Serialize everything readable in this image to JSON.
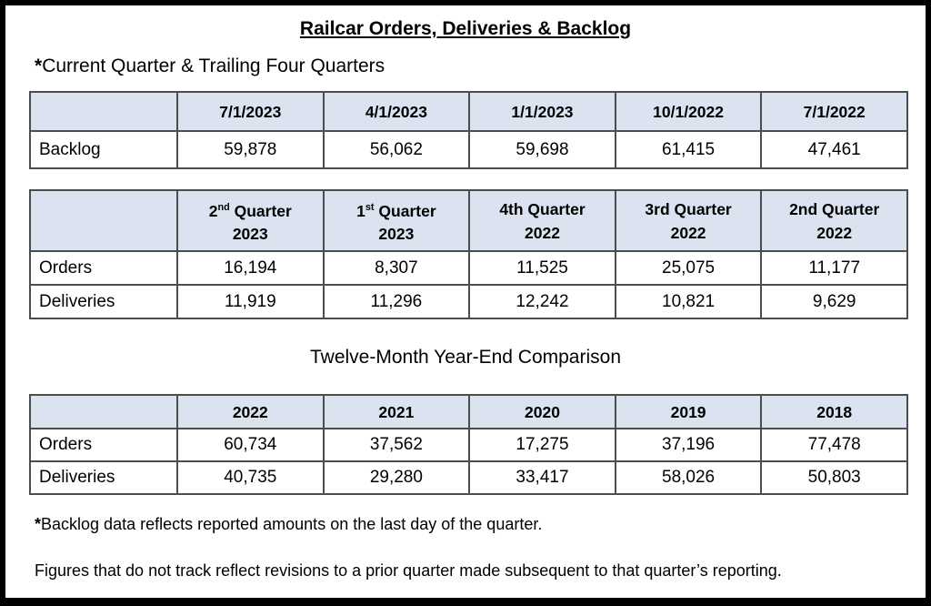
{
  "document": {
    "title": "Railcar Orders, Deliveries & Backlog",
    "subtitle": {
      "marker": "*",
      "text": "Current Quarter & Trailing Four Quarters"
    },
    "section_heading": "Twelve-Month Year-End Comparison",
    "footnotes": [
      {
        "marker": "*",
        "text": "Backlog data reflects reported amounts on the last day of the quarter."
      },
      {
        "marker": "",
        "text": "Figures that do not track reflect revisions to a prior quarter made subsequent to that quarter’s reporting."
      }
    ]
  },
  "colors": {
    "header_bg": "#dce3f0",
    "table_border": "#4d4d4d",
    "page_border": "#000000",
    "text": "#000000"
  },
  "tables": [
    {
      "id": "backlog",
      "columns": [
        {
          "segments": [
            {
              "t": "7/1/2023"
            }
          ]
        },
        {
          "segments": [
            {
              "t": "4/1/2023"
            }
          ]
        },
        {
          "segments": [
            {
              "t": "1/1/2023"
            }
          ]
        },
        {
          "segments": [
            {
              "t": "10/1/2022"
            }
          ]
        },
        {
          "segments": [
            {
              "t": "7/1/2022"
            }
          ]
        }
      ],
      "rows": [
        {
          "label": "Backlog",
          "values": [
            "59,878",
            "56,062",
            "59,698",
            "61,415",
            "47,461"
          ]
        }
      ]
    },
    {
      "id": "quarterly",
      "columns": [
        {
          "segments": [
            {
              "t": "2"
            },
            {
              "t": "nd",
              "sup": true
            },
            {
              "t": " Quarter"
            }
          ],
          "line2": "2023"
        },
        {
          "segments": [
            {
              "t": "1"
            },
            {
              "t": "st",
              "sup": true
            },
            {
              "t": " Quarter"
            }
          ],
          "line2": "2023"
        },
        {
          "segments": [
            {
              "t": "4th Quarter"
            }
          ],
          "line2": "2022"
        },
        {
          "segments": [
            {
              "t": "3rd Quarter"
            }
          ],
          "line2": "2022"
        },
        {
          "segments": [
            {
              "t": "2nd Quarter"
            }
          ],
          "line2": "2022"
        }
      ],
      "rows": [
        {
          "label": "Orders",
          "values": [
            "16,194",
            "8,307",
            "11,525",
            "25,075",
            "11,177"
          ]
        },
        {
          "label": "Deliveries",
          "values": [
            "11,919",
            "11,296",
            "12,242",
            "10,821",
            "9,629"
          ]
        }
      ]
    },
    {
      "id": "yearend",
      "columns": [
        {
          "segments": [
            {
              "t": "2022"
            }
          ]
        },
        {
          "segments": [
            {
              "t": "2021"
            }
          ]
        },
        {
          "segments": [
            {
              "t": "2020"
            }
          ]
        },
        {
          "segments": [
            {
              "t": "2019"
            }
          ]
        },
        {
          "segments": [
            {
              "t": "2018"
            }
          ]
        }
      ],
      "rows": [
        {
          "label": "Orders",
          "values": [
            "60,734",
            "37,562",
            "17,275",
            "37,196",
            "77,478"
          ]
        },
        {
          "label": "Deliveries",
          "values": [
            "40,735",
            "29,280",
            "33,417",
            "58,026",
            "50,803"
          ]
        }
      ]
    }
  ]
}
